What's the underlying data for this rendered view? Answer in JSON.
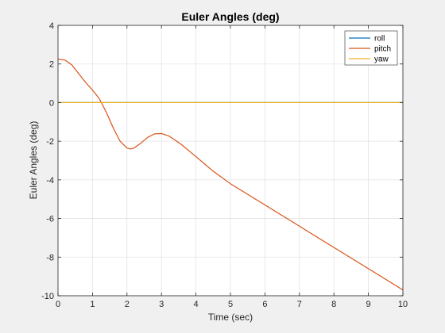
{
  "chart_data": {
    "type": "line",
    "title": "Euler Angles (deg)",
    "xlabel": "Time (sec)",
    "ylabel": "Euler Angles (deg)",
    "xlim": [
      0,
      10
    ],
    "ylim": [
      -10,
      4
    ],
    "xticks": [
      0,
      1,
      2,
      3,
      4,
      5,
      6,
      7,
      8,
      9,
      10
    ],
    "yticks": [
      -10,
      -8,
      -6,
      -4,
      -2,
      0,
      2,
      4
    ],
    "grid": true,
    "legend_position": "top-right",
    "series": [
      {
        "name": "roll",
        "color": "#0072BD",
        "x": [
          0,
          2,
          4,
          6,
          8,
          10
        ],
        "y": [
          0,
          0,
          0,
          0,
          0,
          0
        ]
      },
      {
        "name": "pitch",
        "color": "#D95319",
        "x": [
          0,
          0.2,
          0.4,
          0.6,
          0.8,
          1.0,
          1.2,
          1.4,
          1.6,
          1.8,
          2.0,
          2.1,
          2.2,
          2.4,
          2.6,
          2.8,
          3.0,
          3.2,
          3.4,
          3.6,
          3.8,
          4.0,
          4.5,
          5.0,
          5.5,
          6.0,
          6.5,
          7.0,
          7.5,
          8.0,
          8.5,
          9.0,
          9.5,
          10.0
        ],
        "y": [
          2.25,
          2.2,
          1.95,
          1.5,
          1.05,
          0.65,
          0.2,
          -0.5,
          -1.3,
          -2.0,
          -2.35,
          -2.4,
          -2.35,
          -2.1,
          -1.8,
          -1.62,
          -1.6,
          -1.72,
          -1.95,
          -2.2,
          -2.5,
          -2.8,
          -3.55,
          -4.2,
          -4.75,
          -5.3,
          -5.85,
          -6.4,
          -6.95,
          -7.5,
          -8.05,
          -8.6,
          -9.15,
          -9.7
        ]
      },
      {
        "name": "yaw",
        "color": "#EDB120",
        "x": [
          0,
          2,
          4,
          6,
          8,
          10
        ],
        "y": [
          0,
          0,
          0,
          0,
          0,
          0
        ]
      }
    ]
  }
}
